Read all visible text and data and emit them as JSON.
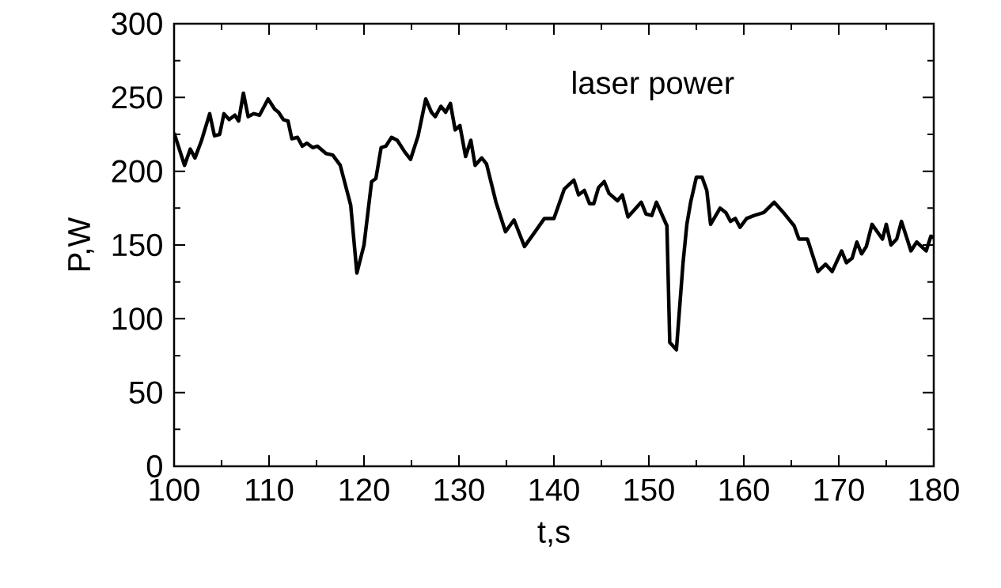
{
  "chart_data": {
    "type": "line",
    "xlabel": "t,s",
    "ylabel": "P,W",
    "annotations": [
      "laser power"
    ],
    "x": [
      100,
      100.1,
      101.1,
      101.7,
      102.2,
      102.9,
      103.75,
      104.25,
      104.8,
      105.25,
      105.8,
      106.4,
      106.8,
      107.3,
      107.8,
      108.4,
      109,
      109.9,
      110.6,
      111,
      111.5,
      112,
      112.4,
      113,
      113.5,
      114,
      114.6,
      115.1,
      116,
      116.7,
      117.5,
      118.6,
      119.25,
      120,
      120.8,
      121.25,
      121.8,
      122.3,
      122.9,
      123.5,
      124.3,
      124.9,
      125.7,
      126.5,
      127.1,
      127.5,
      128.1,
      128.6,
      129.1,
      129.6,
      130.1,
      130.7,
      131.25,
      131.7,
      132.4,
      132.9,
      133.9,
      134.9,
      135.8,
      136.9,
      137.8,
      139,
      140,
      141.1,
      142.1,
      142.6,
      143.2,
      143.75,
      144.2,
      144.7,
      145.3,
      145.8,
      146.7,
      147.2,
      147.8,
      149.2,
      149.7,
      150.3,
      150.8,
      151.9,
      152.2,
      152.9,
      153.6,
      154,
      154.4,
      155,
      155.6,
      156.1,
      156.5,
      157.5,
      158.1,
      158.6,
      159.1,
      159.6,
      160.3,
      161.1,
      162.1,
      163.2,
      164.3,
      165.3,
      165.8,
      166.7,
      167.8,
      168.6,
      169.3,
      170.3,
      170.8,
      171.4,
      171.9,
      172.4,
      172.9,
      173.5,
      174.6,
      175,
      175.5,
      176.1,
      176.6,
      177.6,
      178.2,
      179.2,
      179.7,
      180
    ],
    "series": [
      {
        "color": "#000000",
        "values": [
          226,
          224,
          204,
          215,
          209,
          221,
          239,
          224,
          225,
          239,
          235,
          238,
          234,
          253,
          237,
          239,
          238,
          249,
          242,
          240,
          235,
          234,
          222,
          223,
          217,
          219,
          216,
          217,
          212,
          211,
          204,
          177,
          131,
          150,
          193,
          195,
          216,
          217,
          223,
          221,
          213,
          208,
          224,
          249,
          240,
          237,
          244,
          240,
          246,
          228,
          231,
          210,
          221,
          204,
          209,
          205,
          179,
          159,
          167,
          149,
          157,
          168,
          168,
          188,
          194,
          184,
          187,
          178,
          178,
          189,
          193,
          185,
          180,
          184,
          169,
          179,
          171,
          170,
          179,
          163,
          84,
          79,
          138,
          164,
          179,
          196,
          196,
          187,
          164,
          175,
          172,
          166,
          168,
          162,
          168,
          170,
          172,
          179,
          171,
          163,
          154,
          154,
          132,
          137,
          132,
          146,
          138,
          141,
          152,
          144,
          149,
          164,
          154,
          164,
          150,
          154,
          166,
          146,
          152,
          146,
          156,
          155
        ]
      }
    ],
    "xlim": [
      100,
      180
    ],
    "ylim": [
      0,
      300
    ],
    "xticks": [
      100,
      110,
      120,
      130,
      140,
      150,
      160,
      170,
      180
    ],
    "yticks": [
      0,
      50,
      100,
      150,
      200,
      250,
      300
    ],
    "marker": "none",
    "line_style": "solid"
  }
}
